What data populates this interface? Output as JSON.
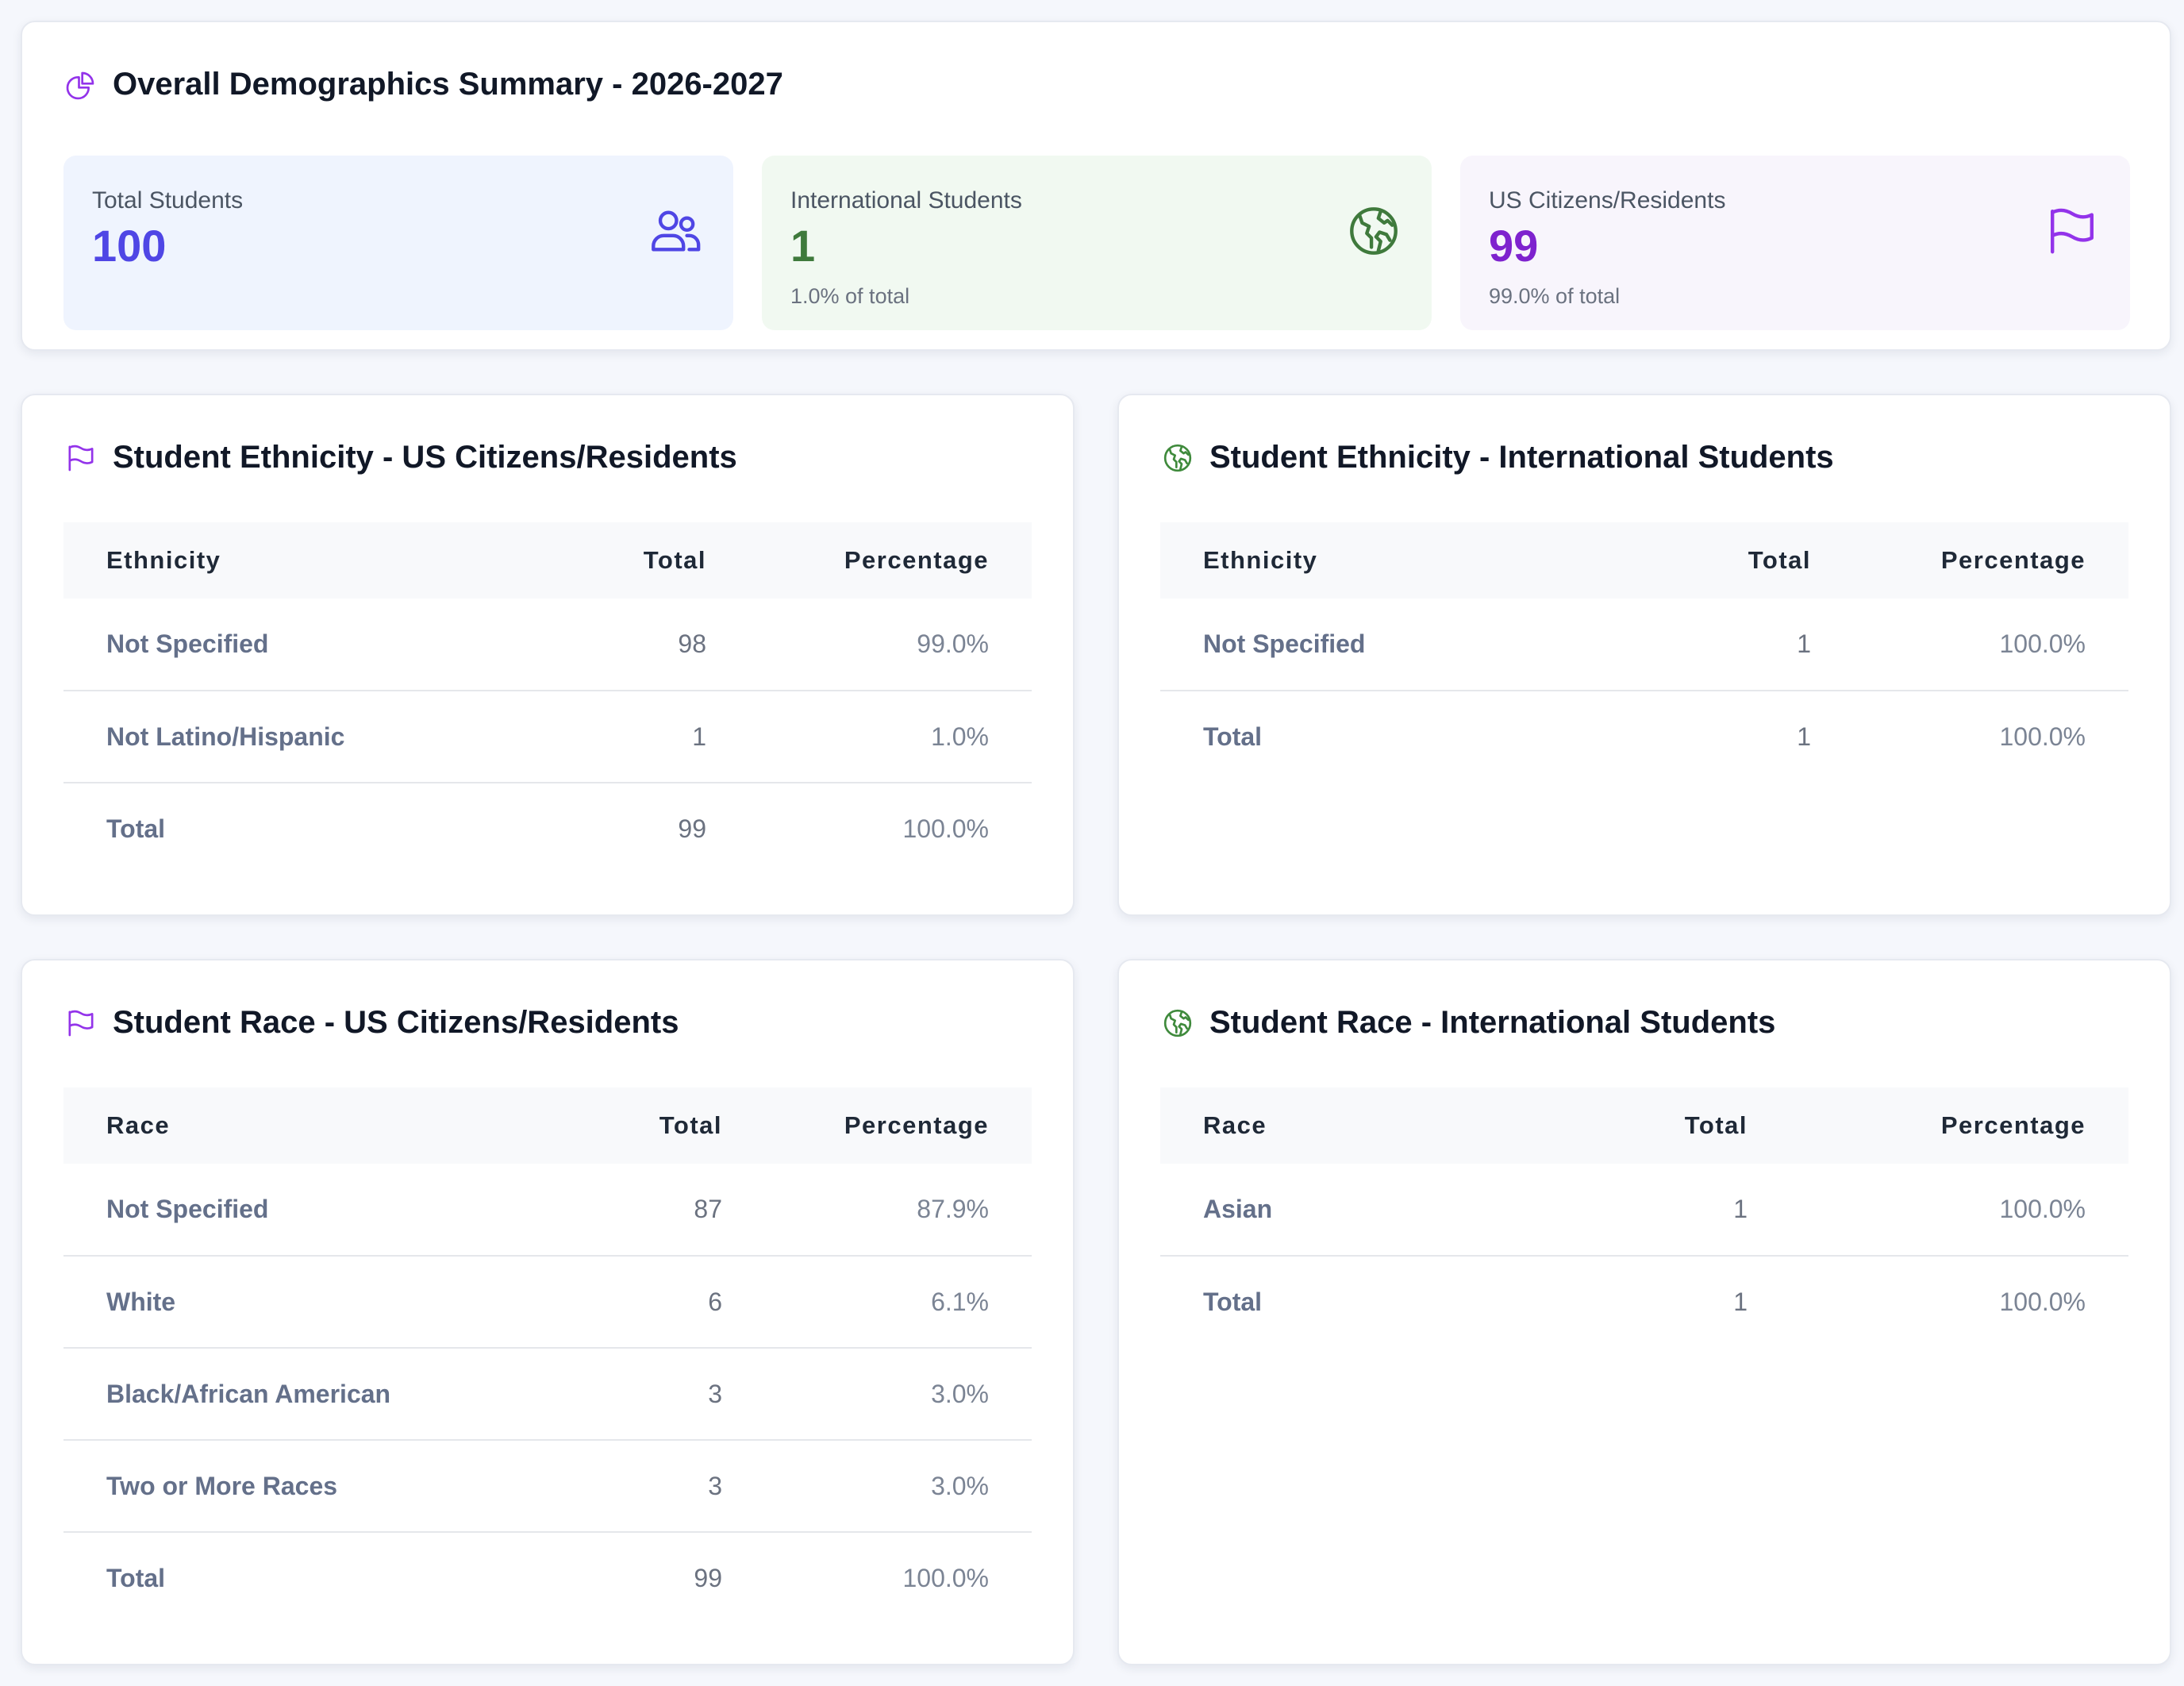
{
  "summary": {
    "title": "Overall Demographics Summary - 2026-2027",
    "title_icon": "pie-chart-icon",
    "total": {
      "label": "Total Students",
      "value": "100",
      "icon": "users-icon",
      "color": "#4f46e5",
      "bg": "#eff4fe"
    },
    "international": {
      "label": "International Students",
      "value": "1",
      "sub": "1.0% of total",
      "icon": "globe-icon",
      "color": "#3f7a3c",
      "bg": "#f1f9f1"
    },
    "us": {
      "label": "US Citizens/Residents",
      "value": "99",
      "sub": "99.0% of total",
      "icon": "flag-icon",
      "color": "#7e22ce",
      "bg": "#f8f5fc"
    }
  },
  "ethnicity_us": {
    "title": "Student Ethnicity - US Citizens/Residents",
    "icon": "flag-icon",
    "headers": [
      "Ethnicity",
      "Total",
      "Percentage"
    ],
    "rows": [
      [
        "Not Specified",
        "98",
        "99.0%"
      ],
      [
        "Not Latino/Hispanic",
        "1",
        "1.0%"
      ],
      [
        "Total",
        "99",
        "100.0%"
      ]
    ]
  },
  "ethnicity_intl": {
    "title": "Student Ethnicity - International Students",
    "icon": "globe-icon",
    "headers": [
      "Ethnicity",
      "Total",
      "Percentage"
    ],
    "rows": [
      [
        "Not Specified",
        "1",
        "100.0%"
      ],
      [
        "Total",
        "1",
        "100.0%"
      ]
    ]
  },
  "race_us": {
    "title": "Student Race - US Citizens/Residents",
    "icon": "flag-icon",
    "headers": [
      "Race",
      "Total",
      "Percentage"
    ],
    "rows": [
      [
        "Not Specified",
        "87",
        "87.9%"
      ],
      [
        "White",
        "6",
        "6.1%"
      ],
      [
        "Black/African American",
        "3",
        "3.0%"
      ],
      [
        "Two or More Races",
        "3",
        "3.0%"
      ],
      [
        "Total",
        "99",
        "100.0%"
      ]
    ]
  },
  "race_intl": {
    "title": "Student Race - International Students",
    "icon": "globe-icon",
    "headers": [
      "Race",
      "Total",
      "Percentage"
    ],
    "rows": [
      [
        "Asian",
        "1",
        "100.0%"
      ],
      [
        "Total",
        "1",
        "100.0%"
      ]
    ]
  }
}
